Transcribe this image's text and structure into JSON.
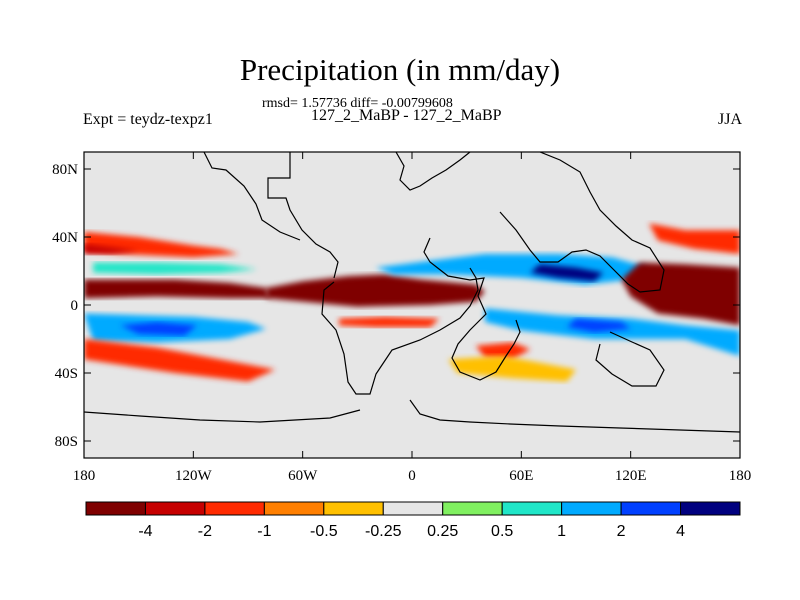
{
  "title": "Precipitation (in mm/day)",
  "stats_line": "rmsd= 1.57736 diff= -0.00799608",
  "experiments_line": "127_2_MaBP - 127_2_MaBP",
  "expt_label": "Expt = teydz-texpz1",
  "season": "JJA",
  "chart_data": {
    "type": "heatmap",
    "title": "Precipitation (in mm/day)",
    "subtitle": "rmsd= 1.57736 diff= -0.00799608",
    "xlabel": "",
    "ylabel": "",
    "xlim": [
      -180,
      180
    ],
    "ylim": [
      -90,
      90
    ],
    "x_ticks": [
      {
        "value": -180,
        "label": "180"
      },
      {
        "value": -120,
        "label": "120W"
      },
      {
        "value": -60,
        "label": "60W"
      },
      {
        "value": 0,
        "label": "0"
      },
      {
        "value": 60,
        "label": "60E"
      },
      {
        "value": 120,
        "label": "120E"
      },
      {
        "value": 180,
        "label": "180"
      }
    ],
    "y_ticks": [
      {
        "value": 80,
        "label": "80N"
      },
      {
        "value": 40,
        "label": "40N"
      },
      {
        "value": 0,
        "label": "0"
      },
      {
        "value": -40,
        "label": "40S"
      },
      {
        "value": -80,
        "label": "80S"
      }
    ],
    "colorbar": {
      "colors": [
        "#7f0000",
        "#c60000",
        "#ff2a00",
        "#ff7f00",
        "#ffc000",
        "#e6e6e6",
        "#80f060",
        "#20e6c8",
        "#00aaff",
        "#0040ff",
        "#00007f"
      ],
      "boundary_labels": [
        "-4",
        "-2",
        "-1",
        "-0.5",
        "-0.25",
        "0.25",
        "0.5",
        "1",
        "2",
        "4"
      ]
    },
    "features": [
      {
        "name": "north-pacific-dry-band",
        "value": -1.5,
        "points": [
          [
            -180,
            43
          ],
          [
            -150,
            40
          ],
          [
            -120,
            35
          ],
          [
            -105,
            33
          ],
          [
            -95,
            30
          ],
          [
            -120,
            28
          ],
          [
            -160,
            30
          ],
          [
            -180,
            32
          ]
        ]
      },
      {
        "name": "east-pacific-dry-core",
        "value": -3,
        "points": [
          [
            -180,
            36
          ],
          [
            -165,
            34
          ],
          [
            -150,
            32
          ],
          [
            -165,
            30
          ],
          [
            -180,
            30
          ]
        ]
      },
      {
        "name": "north-pacific-wet-band",
        "value": 0.7,
        "points": [
          [
            -175,
            25
          ],
          [
            -140,
            25
          ],
          [
            -105,
            24
          ],
          [
            -85,
            21
          ],
          [
            -105,
            19
          ],
          [
            -140,
            18
          ],
          [
            -175,
            19
          ]
        ]
      },
      {
        "name": "itcz-dry-band-pacific",
        "value": -4.5,
        "points": [
          [
            -180,
            15
          ],
          [
            -130,
            15
          ],
          [
            -100,
            13
          ],
          [
            -80,
            10
          ],
          [
            -78,
            4
          ],
          [
            -100,
            4
          ],
          [
            -140,
            5
          ],
          [
            -180,
            4
          ]
        ]
      },
      {
        "name": "itcz-dry-band-atlantic-africa",
        "value": -4.5,
        "points": [
          [
            -80,
            10
          ],
          [
            -60,
            14
          ],
          [
            -35,
            17
          ],
          [
            -15,
            18
          ],
          [
            5,
            15
          ],
          [
            35,
            12
          ],
          [
            40,
            8
          ],
          [
            35,
            2
          ],
          [
            10,
            0
          ],
          [
            -30,
            -1
          ],
          [
            -60,
            2
          ],
          [
            -80,
            4
          ]
        ]
      },
      {
        "name": "south-pacific-wet-band",
        "value": 1.5,
        "points": [
          [
            -180,
            -5
          ],
          [
            -150,
            -6
          ],
          [
            -120,
            -7
          ],
          [
            -90,
            -10
          ],
          [
            -80,
            -14
          ],
          [
            -100,
            -20
          ],
          [
            -140,
            -22
          ],
          [
            -175,
            -21
          ]
        ]
      },
      {
        "name": "south-pacific-wet-core",
        "value": 3,
        "points": [
          [
            -160,
            -12
          ],
          [
            -140,
            -10
          ],
          [
            -118,
            -12
          ],
          [
            -125,
            -18
          ],
          [
            -150,
            -17
          ]
        ]
      },
      {
        "name": "south-pacific-dry-band",
        "value": -2,
        "points": [
          [
            -180,
            -20
          ],
          [
            -140,
            -25
          ],
          [
            -100,
            -33
          ],
          [
            -75,
            -38
          ],
          [
            -90,
            -45
          ],
          [
            -130,
            -40
          ],
          [
            -180,
            -32
          ]
        ]
      },
      {
        "name": "atlantic-south-dry-band",
        "value": -1.5,
        "points": [
          [
            -40,
            -8
          ],
          [
            -15,
            -7
          ],
          [
            15,
            -8
          ],
          [
            10,
            -13
          ],
          [
            -20,
            -13
          ],
          [
            -40,
            -12
          ]
        ]
      },
      {
        "name": "asia-wet-band",
        "value": 1.5,
        "points": [
          [
            -20,
            22
          ],
          [
            10,
            26
          ],
          [
            40,
            30
          ],
          [
            80,
            30
          ],
          [
            110,
            28
          ],
          [
            130,
            22
          ],
          [
            120,
            15
          ],
          [
            95,
            12
          ],
          [
            60,
            16
          ],
          [
            20,
            18
          ],
          [
            -10,
            18
          ]
        ]
      },
      {
        "name": "asia-wet-core",
        "value": 4.5,
        "points": [
          [
            70,
            24
          ],
          [
            90,
            22
          ],
          [
            105,
            19
          ],
          [
            100,
            14
          ],
          [
            80,
            16
          ],
          [
            65,
            19
          ]
        ]
      },
      {
        "name": "west-pacific-dry-core",
        "value": -4.5,
        "points": [
          [
            125,
            25
          ],
          [
            150,
            24
          ],
          [
            180,
            22
          ],
          [
            180,
            -12
          ],
          [
            160,
            -8
          ],
          [
            135,
            -5
          ],
          [
            120,
            5
          ],
          [
            115,
            15
          ]
        ]
      },
      {
        "name": "north-pacific-east-dry",
        "value": -2,
        "points": [
          [
            130,
            48
          ],
          [
            150,
            44
          ],
          [
            180,
            44
          ],
          [
            180,
            30
          ],
          [
            155,
            33
          ],
          [
            135,
            38
          ]
        ]
      },
      {
        "name": "indian-ocean-wet-band",
        "value": 1.5,
        "points": [
          [
            40,
            -2
          ],
          [
            80,
            -6
          ],
          [
            120,
            -8
          ],
          [
            150,
            -12
          ],
          [
            180,
            -15
          ],
          [
            180,
            -30
          ],
          [
            150,
            -20
          ],
          [
            100,
            -20
          ],
          [
            60,
            -15
          ],
          [
            40,
            -10
          ]
        ]
      },
      {
        "name": "indian-ocean-wet-core",
        "value": 3,
        "points": [
          [
            90,
            -8
          ],
          [
            115,
            -10
          ],
          [
            120,
            -14
          ],
          [
            100,
            -16
          ],
          [
            85,
            -13
          ]
        ]
      },
      {
        "name": "south-indian-dry-patch",
        "value": -1.5,
        "points": [
          [
            35,
            -24
          ],
          [
            55,
            -22
          ],
          [
            65,
            -26
          ],
          [
            55,
            -32
          ],
          [
            40,
            -31
          ]
        ]
      },
      {
        "name": "south-atlantic-dry-patch",
        "value": -0.4,
        "points": [
          [
            20,
            -32
          ],
          [
            50,
            -30
          ],
          [
            70,
            -34
          ],
          [
            90,
            -38
          ],
          [
            85,
            -45
          ],
          [
            55,
            -43
          ],
          [
            25,
            -40
          ]
        ]
      }
    ],
    "land_outline": "simplified continental coastline boundary (gridded)"
  }
}
